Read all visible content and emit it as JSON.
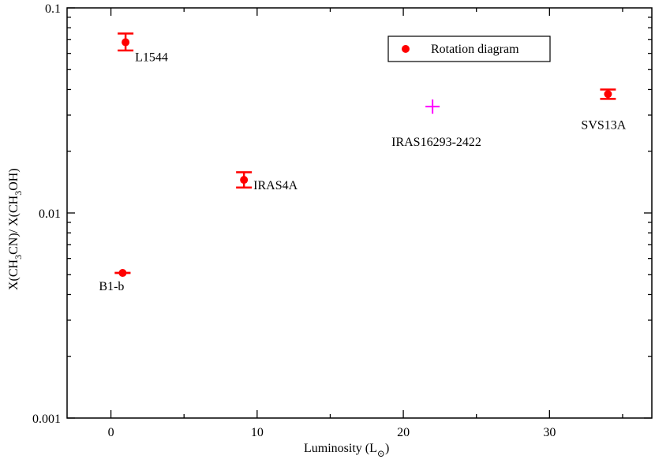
{
  "chart_data": {
    "type": "scatter",
    "title": "",
    "xlabel": "Luminosity",
    "xlabel_symbol": "L",
    "xlabel_subscript": "⊙",
    "ylabel": "X(CH3CN)/ X(CH3OH)",
    "ylabel_parts": [
      "X(CH",
      "3",
      "CN)/ X(CH",
      "3",
      "OH)"
    ],
    "xlim": [
      -3,
      37
    ],
    "ylim": [
      0.001,
      0.1
    ],
    "yscale": "log",
    "grid": false,
    "legend_position": "top-right",
    "xticks": [
      0,
      10,
      20,
      30
    ],
    "xtick_labels": [
      "0",
      "10",
      "20",
      "30"
    ],
    "yticks": [
      0.001,
      0.01,
      0.1
    ],
    "ytick_labels": [
      "0.001",
      "0.01",
      "0.1"
    ],
    "series": [
      {
        "name": "Rotation diagram",
        "color": "#ff0000",
        "marker": "circle",
        "points": [
          {
            "label": "L1544",
            "x": 1.0,
            "y": 0.068,
            "ylow": 0.062,
            "yhigh": 0.075
          },
          {
            "label": "B1-b",
            "x": 0.8,
            "y": 0.0051,
            "ylow": 0.0051,
            "yhigh": 0.0051
          },
          {
            "label": "IRAS4A",
            "x": 9.1,
            "y": 0.0145,
            "ylow": 0.0133,
            "yhigh": 0.0158
          },
          {
            "label": "SVS13A",
            "x": 34.0,
            "y": 0.038,
            "ylow": 0.036,
            "yhigh": 0.04
          }
        ]
      },
      {
        "color": "#ff00ff",
        "marker": "plus",
        "points": [
          {
            "label": "IRAS16293-2422",
            "x": 22.0,
            "y": 0.033
          }
        ]
      }
    ]
  }
}
